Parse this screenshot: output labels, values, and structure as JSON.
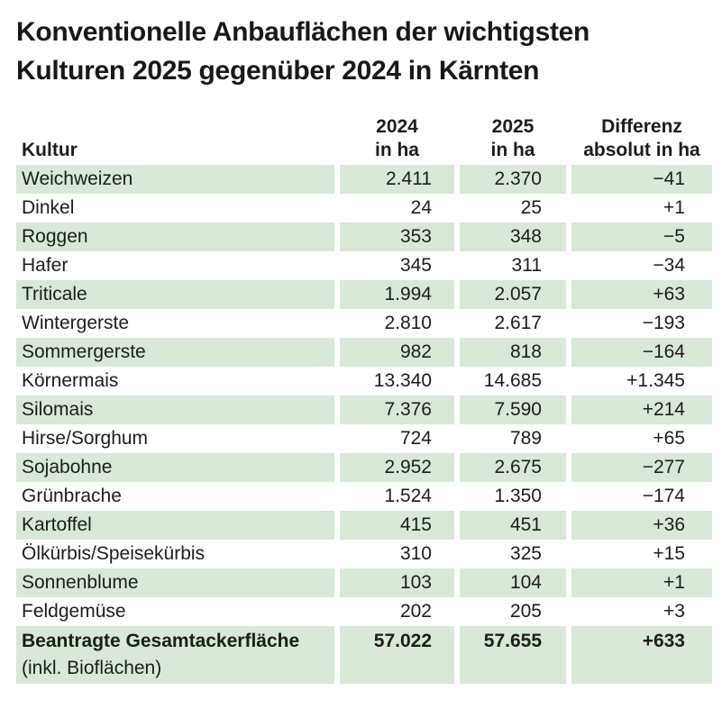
{
  "title": {
    "line1": "Konventionelle Anbauflächen der wichtigsten",
    "line2": "Kulturen 2025 gegenüber 2024 in Kärnten"
  },
  "table": {
    "header": {
      "kultur": "Kultur",
      "y2024_line1": "2024",
      "y2024_line2": "in ha",
      "y2025_line1": "2025",
      "y2025_line2": "in ha",
      "diff_line1": "Differenz",
      "diff_line2": "absolut in ha"
    },
    "rows": [
      {
        "kultur": "Weichweizen",
        "y2024": "2.411",
        "y2025": "2.370",
        "diff": "−41"
      },
      {
        "kultur": "Dinkel",
        "y2024": "24",
        "y2025": "25",
        "diff": "+1"
      },
      {
        "kultur": "Roggen",
        "y2024": "353",
        "y2025": "348",
        "diff": "−5"
      },
      {
        "kultur": "Hafer",
        "y2024": "345",
        "y2025": "311",
        "diff": "−34"
      },
      {
        "kultur": "Triticale",
        "y2024": "1.994",
        "y2025": "2.057",
        "diff": "+63"
      },
      {
        "kultur": "Wintergerste",
        "y2024": "2.810",
        "y2025": "2.617",
        "diff": "−193"
      },
      {
        "kultur": "Sommergerste",
        "y2024": "982",
        "y2025": "818",
        "diff": "−164"
      },
      {
        "kultur": "Körnermais",
        "y2024": "13.340",
        "y2025": "14.685",
        "diff": "+1.345"
      },
      {
        "kultur": "Silomais",
        "y2024": "7.376",
        "y2025": "7.590",
        "diff": "+214"
      },
      {
        "kultur": "Hirse/Sorghum",
        "y2024": "724",
        "y2025": "789",
        "diff": "+65"
      },
      {
        "kultur": "Sojabohne",
        "y2024": "2.952",
        "y2025": "2.675",
        "diff": "−277"
      },
      {
        "kultur": "Grünbrache",
        "y2024": "1.524",
        "y2025": "1.350",
        "diff": "−174"
      },
      {
        "kultur": "Kartoffel",
        "y2024": "415",
        "y2025": "451",
        "diff": "+36"
      },
      {
        "kultur": "Ölkürbis/Speisekürbis",
        "y2024": "310",
        "y2025": "325",
        "diff": "+15"
      },
      {
        "kultur": "Sonnenblume",
        "y2024": "103",
        "y2025": "104",
        "diff": "+1"
      },
      {
        "kultur": "Feldgemüse",
        "y2024": "202",
        "y2025": "205",
        "diff": "+3"
      }
    ],
    "total": {
      "label_line1": "Beantragte Gesamtackerfläche",
      "label_line2": "(inkl. Bioflächen)",
      "y2024": "57.022",
      "y2025": "57.655",
      "diff": "+633"
    }
  },
  "colors": {
    "row_green": "#d9e8d9",
    "text": "#1d1d1b"
  },
  "chart_data": {
    "type": "table",
    "title": "Konventionelle Anbauflächen der wichtigsten Kulturen 2025 gegenüber 2024 in Kärnten",
    "columns": [
      "Kultur",
      "2024 in ha",
      "2025 in ha",
      "Differenz absolut in ha"
    ],
    "rows": [
      [
        "Weichweizen",
        2411,
        2370,
        -41
      ],
      [
        "Dinkel",
        24,
        25,
        1
      ],
      [
        "Roggen",
        353,
        348,
        -5
      ],
      [
        "Hafer",
        345,
        311,
        -34
      ],
      [
        "Triticale",
        1994,
        2057,
        63
      ],
      [
        "Wintergerste",
        2810,
        2617,
        -193
      ],
      [
        "Sommergerste",
        982,
        818,
        -164
      ],
      [
        "Körnermais",
        13340,
        14685,
        1345
      ],
      [
        "Silomais",
        7376,
        7590,
        214
      ],
      [
        "Hirse/Sorghum",
        724,
        789,
        65
      ],
      [
        "Sojabohne",
        2952,
        2675,
        -277
      ],
      [
        "Grünbrache",
        1524,
        1350,
        -174
      ],
      [
        "Kartoffel",
        415,
        451,
        36
      ],
      [
        "Ölkürbis/Speisekürbis",
        310,
        325,
        15
      ],
      [
        "Sonnenblume",
        103,
        104,
        1
      ],
      [
        "Feldgemüse",
        202,
        205,
        3
      ]
    ],
    "total_row": [
      "Beantragte Gesamtackerfläche (inkl. Bioflächen)",
      57022,
      57655,
      633
    ],
    "layout_hints": {
      "zebra_striping": true,
      "stripe_color": "#d9e8d9",
      "first_row_striped": true
    }
  }
}
